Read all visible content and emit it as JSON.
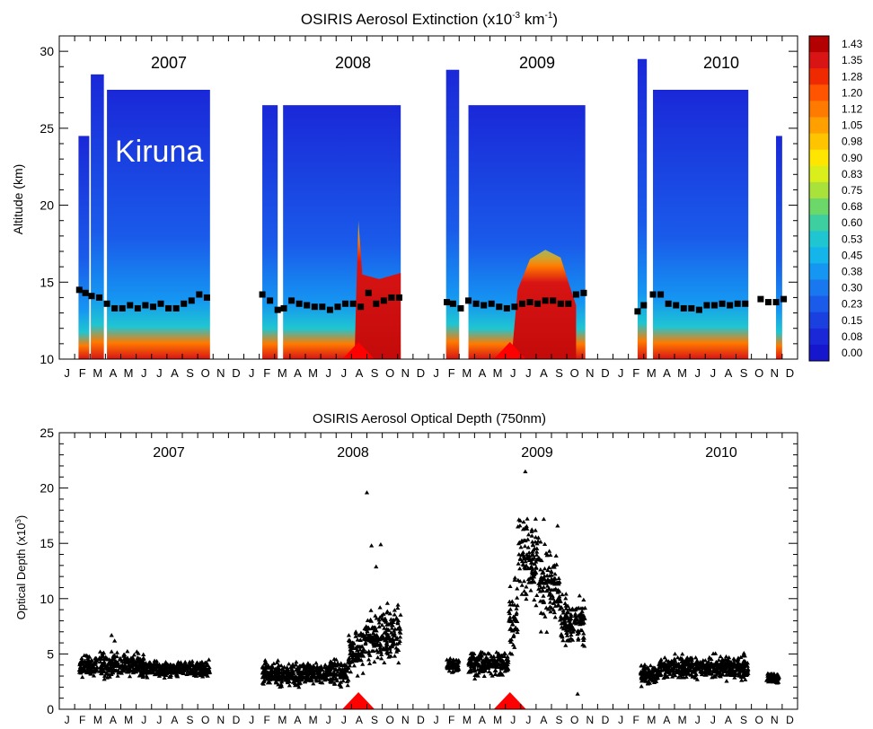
{
  "chart_data": [
    {
      "type": "heatmap",
      "title": "OSIRIS Aerosol Extinction (x10",
      "title_exp1": "-3",
      "title_mid": " km",
      "title_exp2": "-1",
      "title_end": ")",
      "ylabel": "Altitude (km)",
      "ylim": [
        10,
        31
      ],
      "yticks": [
        10,
        15,
        20,
        25,
        30
      ],
      "years": [
        "2007",
        "2008",
        "2009",
        "2010"
      ],
      "location_label": "Kiruna",
      "month_ticks": [
        "J",
        "F",
        "M",
        "A",
        "M",
        "J",
        "J",
        "A",
        "S",
        "O",
        "N",
        "D",
        "J",
        "F",
        "M",
        "A",
        "M",
        "J",
        "J",
        "A",
        "S",
        "O",
        "N",
        "D",
        "J",
        "F",
        "M",
        "A",
        "M",
        "J",
        "J",
        "A",
        "S",
        "O",
        "N",
        "D",
        "J",
        "F",
        "M",
        "A",
        "M",
        "J",
        "J",
        "A",
        "S",
        "O",
        "N",
        "D"
      ],
      "colorbar": {
        "labels": [
          "1.43",
          "1.35",
          "1.28",
          "1.20",
          "1.12",
          "1.05",
          "0.98",
          "0.90",
          "0.83",
          "0.75",
          "0.68",
          "0.60",
          "0.53",
          "0.45",
          "0.38",
          "0.30",
          "0.23",
          "0.15",
          "0.08",
          "0.00"
        ],
        "colors": [
          "#b30000",
          "#d81414",
          "#f02a00",
          "#ff5500",
          "#ff7a00",
          "#ffa000",
          "#ffc400",
          "#ffe600",
          "#d9ee1a",
          "#a8e23a",
          "#6cd86a",
          "#3dcfa0",
          "#1fc6d1",
          "#14b5ea",
          "#1596f2",
          "#1977ef",
          "#1a5bea",
          "#1a40e0",
          "#1a28d8",
          "#1616cc"
        ]
      },
      "panel_color": "#1a3ee6",
      "tropopause_months": [
        [
          1.3,
          14.5
        ],
        [
          1.7,
          14.3
        ],
        [
          2.1,
          14.1
        ],
        [
          2.6,
          14.0
        ],
        [
          3.1,
          13.6
        ],
        [
          3.6,
          13.3
        ],
        [
          4.1,
          13.3
        ],
        [
          4.6,
          13.5
        ],
        [
          5.1,
          13.3
        ],
        [
          5.6,
          13.5
        ],
        [
          6.1,
          13.4
        ],
        [
          6.6,
          13.6
        ],
        [
          7.1,
          13.3
        ],
        [
          7.6,
          13.3
        ],
        [
          8.1,
          13.6
        ],
        [
          8.6,
          13.8
        ],
        [
          9.1,
          14.2
        ],
        [
          9.6,
          14.0
        ],
        [
          13.2,
          14.2
        ],
        [
          13.7,
          13.8
        ],
        [
          14.2,
          13.2
        ],
        [
          14.6,
          13.3
        ],
        [
          15.1,
          13.8
        ],
        [
          15.6,
          13.6
        ],
        [
          16.1,
          13.5
        ],
        [
          16.6,
          13.4
        ],
        [
          17.1,
          13.4
        ],
        [
          17.6,
          13.2
        ],
        [
          18.1,
          13.4
        ],
        [
          18.6,
          13.6
        ],
        [
          19.1,
          13.6
        ],
        [
          19.6,
          13.4
        ],
        [
          20.1,
          14.3
        ],
        [
          20.6,
          13.6
        ],
        [
          21.1,
          13.8
        ],
        [
          21.6,
          14.0
        ],
        [
          22.1,
          14.0
        ],
        [
          25.2,
          13.7
        ],
        [
          25.6,
          13.6
        ],
        [
          26.1,
          13.3
        ],
        [
          26.6,
          13.8
        ],
        [
          27.1,
          13.6
        ],
        [
          27.6,
          13.5
        ],
        [
          28.1,
          13.6
        ],
        [
          28.6,
          13.4
        ],
        [
          29.1,
          13.3
        ],
        [
          29.6,
          13.4
        ],
        [
          30.1,
          13.6
        ],
        [
          30.6,
          13.7
        ],
        [
          31.1,
          13.6
        ],
        [
          31.6,
          13.8
        ],
        [
          32.1,
          13.8
        ],
        [
          32.6,
          13.6
        ],
        [
          33.1,
          13.6
        ],
        [
          33.6,
          14.2
        ],
        [
          34.1,
          14.3
        ],
        [
          37.6,
          13.1
        ],
        [
          38.0,
          13.5
        ],
        [
          38.6,
          14.2
        ],
        [
          39.1,
          14.2
        ],
        [
          39.6,
          13.6
        ],
        [
          40.1,
          13.5
        ],
        [
          40.6,
          13.3
        ],
        [
          41.1,
          13.3
        ],
        [
          41.6,
          13.2
        ],
        [
          42.1,
          13.5
        ],
        [
          42.6,
          13.5
        ],
        [
          43.1,
          13.6
        ],
        [
          43.6,
          13.5
        ],
        [
          44.1,
          13.6
        ],
        [
          44.6,
          13.6
        ],
        [
          45.6,
          13.9
        ],
        [
          46.1,
          13.7
        ],
        [
          46.6,
          13.7
        ],
        [
          47.1,
          13.9
        ]
      ],
      "eruption_months": [
        19.45,
        29.3
      ]
    },
    {
      "type": "scatter",
      "title": "OSIRIS Aerosol Optical Depth (750nm)",
      "ylabel": "Optical Depth (x10",
      "ylabel_exp": "3",
      "ylabel_end": ")",
      "ylim": [
        0,
        25
      ],
      "yticks": [
        0,
        5,
        10,
        15,
        20,
        25
      ],
      "years": [
        "2007",
        "2008",
        "2009",
        "2010"
      ],
      "month_ticks": [
        "J",
        "F",
        "M",
        "A",
        "M",
        "J",
        "J",
        "A",
        "S",
        "O",
        "N",
        "D",
        "J",
        "F",
        "M",
        "A",
        "M",
        "J",
        "J",
        "A",
        "S",
        "O",
        "N",
        "D",
        "J",
        "F",
        "M",
        "A",
        "M",
        "J",
        "J",
        "A",
        "S",
        "O",
        "N",
        "D",
        "J",
        "F",
        "M",
        "A",
        "M",
        "J",
        "J",
        "A",
        "S",
        "O",
        "N",
        "D"
      ],
      "series_envelope": [
        {
          "x": [
            1.3,
            2.5
          ],
          "low": 2.8,
          "high": 5.2
        },
        {
          "x": [
            2.6,
            3.1
          ],
          "low": 2.5,
          "high": 5.8
        },
        {
          "x": [
            3.1,
            5.5
          ],
          "low": 2.6,
          "high": 5.6
        },
        {
          "x": [
            5.5,
            9.8
          ],
          "low": 2.7,
          "high": 4.6
        },
        {
          "x": [
            13.2,
            17.5
          ],
          "low": 1.8,
          "high": 4.6
        },
        {
          "x": [
            17.5,
            18.8
          ],
          "low": 1.8,
          "high": 5.0
        },
        {
          "x": [
            18.8,
            19.8
          ],
          "low": 2.5,
          "high": 8.0
        },
        {
          "x": [
            19.8,
            22.2
          ],
          "low": 3.5,
          "high": 10.0
        },
        {
          "x": [
            25.2,
            26.0
          ],
          "low": 3.0,
          "high": 4.8
        },
        {
          "x": [
            26.6,
            29.2
          ],
          "low": 2.6,
          "high": 5.6
        },
        {
          "x": [
            29.2,
            29.8
          ],
          "low": 3.0,
          "high": 13.0
        },
        {
          "x": [
            29.8,
            31.2
          ],
          "low": 8.0,
          "high": 19.0
        },
        {
          "x": [
            31.2,
            32.6
          ],
          "low": 6.5,
          "high": 16.0
        },
        {
          "x": [
            32.6,
            34.2
          ],
          "low": 5.0,
          "high": 11.0
        },
        {
          "x": [
            37.8,
            39.0
          ],
          "low": 2.0,
          "high": 4.5
        },
        {
          "x": [
            39.0,
            44.8
          ],
          "low": 2.4,
          "high": 5.2
        },
        {
          "x": [
            46.0,
            46.8
          ],
          "low": 2.2,
          "high": 3.5
        }
      ],
      "outliers": [
        [
          20.0,
          19.6
        ],
        [
          20.3,
          14.8
        ],
        [
          20.9,
          14.9
        ],
        [
          20.6,
          12.9
        ],
        [
          30.3,
          21.5
        ],
        [
          31.5,
          17.2
        ],
        [
          32.4,
          16.6
        ],
        [
          33.7,
          1.4
        ],
        [
          3.4,
          6.7
        ],
        [
          3.6,
          6.2
        ]
      ],
      "eruption_months": [
        19.45,
        29.3
      ]
    }
  ]
}
